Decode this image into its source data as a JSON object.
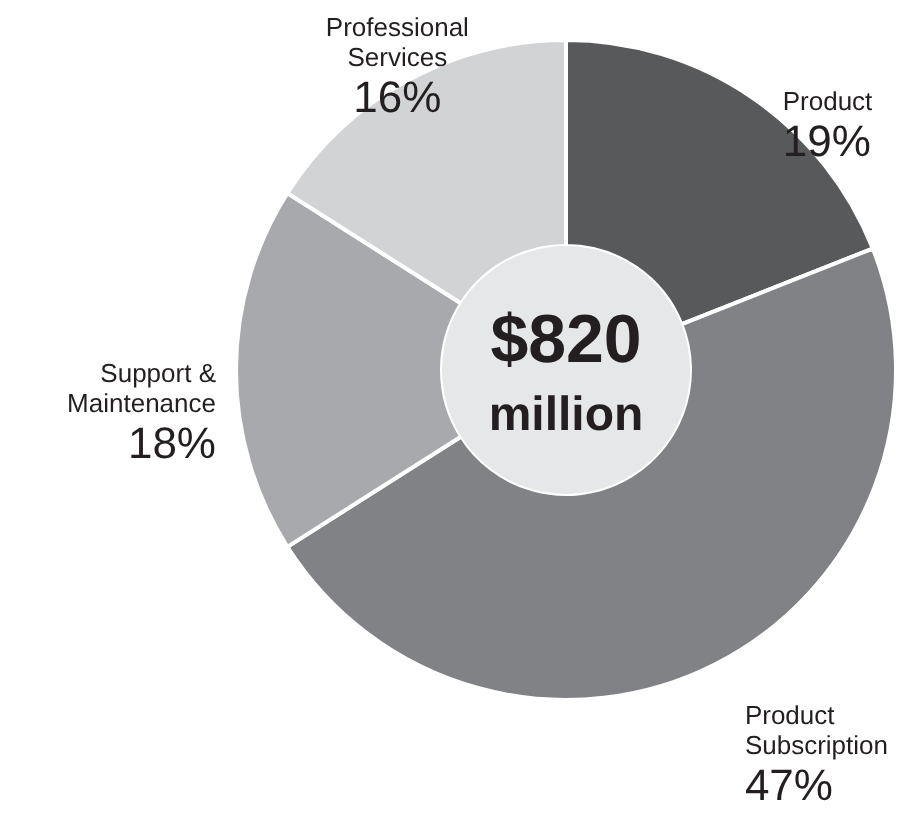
{
  "chart_data": {
    "type": "donut",
    "categories": [
      "Product",
      "Product Subscription",
      "Support & Maintenance",
      "Professional Services"
    ],
    "values": [
      19,
      47,
      18,
      16
    ],
    "colors": [
      "#58595b",
      "#808285",
      "#a7a9ac",
      "#d1d3d4"
    ],
    "value_labels": [
      "19%",
      "47%",
      "18%",
      "16%"
    ],
    "annotations": [
      "$820",
      "million"
    ]
  }
}
